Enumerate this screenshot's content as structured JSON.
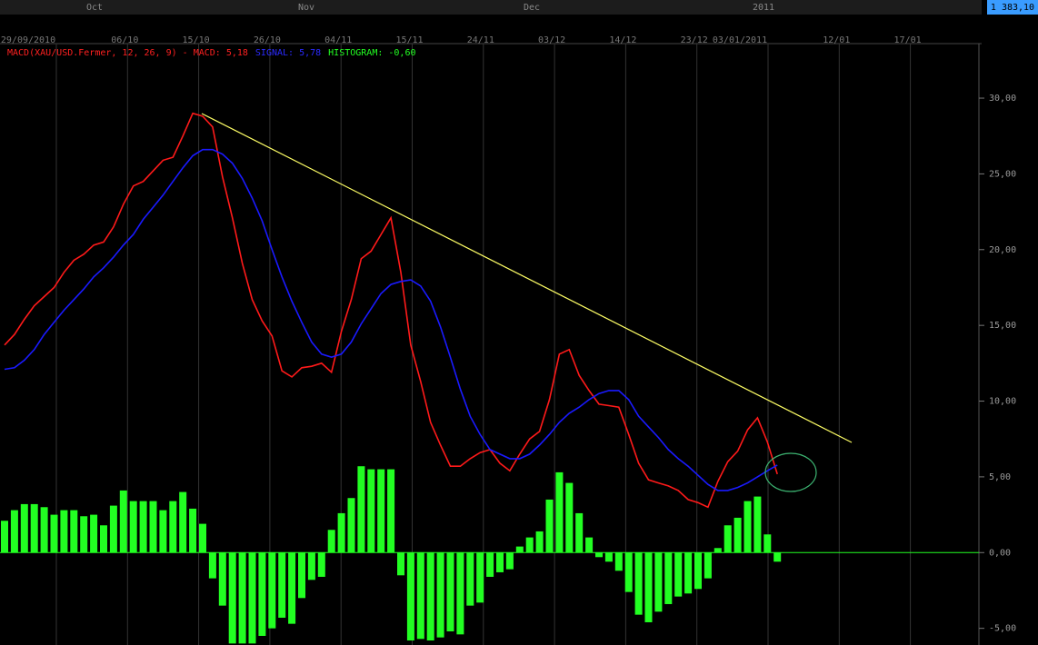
{
  "chart_data": {
    "type": "macd",
    "price_label": "1 383,10",
    "month_labels": [
      "Oct",
      "Nov",
      "Dec",
      "2011"
    ],
    "date_labels": [
      "29/09/2010",
      "06/10",
      "15/10",
      "26/10",
      "04/11",
      "15/11",
      "24/11",
      "03/12",
      "14/12",
      "23/12",
      "03/01/2011",
      "12/01",
      "17/01"
    ],
    "legend": [
      {
        "text": "MACD(XAU/USD.Fermer, 12, 26, 9) - MACD: 5,18",
        "color": "#ff2020"
      },
      {
        "text": "SIGNAL: 5,78",
        "color": "#2a2aff"
      },
      {
        "text": "HISTOGRAM: -0,60",
        "color": "#22ff22"
      }
    ],
    "categories": [
      null,
      null,
      null,
      null,
      null,
      null,
      null,
      null,
      null,
      null,
      null,
      null,
      null,
      null,
      null,
      null,
      null,
      null,
      null,
      null,
      null,
      null,
      null,
      null,
      null,
      null,
      null,
      null,
      null,
      null,
      null,
      null,
      null,
      null,
      null,
      null,
      null,
      null,
      null,
      null,
      null,
      null,
      null,
      null,
      null,
      null,
      null,
      null,
      null,
      null,
      null,
      null,
      null,
      null,
      null,
      null,
      null,
      null,
      null,
      null,
      null,
      null,
      null,
      null,
      null,
      null,
      null,
      null,
      null,
      null,
      null,
      null,
      null,
      null,
      null,
      null,
      null,
      null,
      null
    ],
    "series": [
      {
        "name": "MACD",
        "kind": "line",
        "color": "#ff1a1a",
        "values": [
          13.7,
          14.4,
          15.4,
          16.3,
          16.9,
          17.5,
          18.5,
          19.3,
          19.7,
          20.3,
          20.5,
          21.5,
          23.0,
          24.2,
          24.5,
          25.2,
          25.9,
          26.1,
          27.5,
          29.0,
          28.8,
          28.1,
          24.8,
          22.1,
          19.1,
          16.7,
          15.3,
          14.3,
          12.0,
          11.6,
          12.2,
          12.3,
          12.5,
          11.9,
          14.6,
          16.7,
          19.4,
          19.9,
          21.0,
          22.1,
          18.5,
          13.7,
          11.3,
          8.6,
          7.1,
          5.7,
          5.7,
          6.2,
          6.6,
          6.8,
          5.9,
          5.4,
          6.5,
          7.5,
          8.0,
          10.1,
          13.1,
          13.4,
          11.7,
          10.7,
          9.8,
          9.7,
          9.6,
          7.8,
          5.9,
          4.8,
          4.6,
          4.4,
          4.1,
          3.5,
          3.3,
          3.0,
          4.7,
          6.0,
          6.7,
          8.1,
          8.9,
          7.3,
          5.18
        ]
      },
      {
        "name": "SIGNAL",
        "kind": "line",
        "color": "#1a1aff",
        "values": [
          12.1,
          12.2,
          12.7,
          13.4,
          14.4,
          15.2,
          16.0,
          16.7,
          17.4,
          18.2,
          18.8,
          19.5,
          20.3,
          21.0,
          22.0,
          22.8,
          23.6,
          24.5,
          25.4,
          26.2,
          26.6,
          26.6,
          26.3,
          25.7,
          24.7,
          23.4,
          21.9,
          20.0,
          18.2,
          16.6,
          15.2,
          13.9,
          13.1,
          12.9,
          13.1,
          13.9,
          15.1,
          16.1,
          17.1,
          17.7,
          17.9,
          18.0,
          17.6,
          16.6,
          14.9,
          12.9,
          10.8,
          9.0,
          7.8,
          6.8,
          6.5,
          6.2,
          6.2,
          6.5,
          7.1,
          7.8,
          8.6,
          9.2,
          9.6,
          10.1,
          10.5,
          10.7,
          10.7,
          10.1,
          9.0,
          8.3,
          7.6,
          6.8,
          6.2,
          5.7,
          5.1,
          4.5,
          4.1,
          4.1,
          4.3,
          4.6,
          5.0,
          5.4,
          5.78
        ]
      },
      {
        "name": "HISTOGRAM",
        "kind": "bar",
        "color": "#22ff22",
        "values": [
          2.1,
          2.8,
          3.2,
          3.2,
          3.0,
          2.5,
          2.8,
          2.8,
          2.4,
          2.5,
          1.8,
          3.1,
          4.1,
          3.4,
          3.4,
          3.4,
          2.8,
          3.4,
          4.0,
          2.9,
          1.9,
          -1.7,
          -3.5,
          -6.0,
          -6.0,
          -6.0,
          -5.5,
          -5.0,
          -4.3,
          -4.7,
          -3.0,
          -1.8,
          -1.6,
          1.5,
          2.6,
          3.6,
          5.7,
          5.5,
          5.5,
          5.5,
          -1.5,
          -5.8,
          -5.7,
          -5.8,
          -5.6,
          -5.2,
          -5.4,
          -3.5,
          -3.3,
          -1.6,
          -1.3,
          -1.1,
          0.4,
          1.0,
          1.4,
          3.5,
          5.3,
          4.6,
          2.6,
          1.0,
          -0.3,
          -0.6,
          -1.2,
          -2.6,
          -4.1,
          -4.6,
          -3.9,
          -3.4,
          -2.9,
          -2.7,
          -2.4,
          -1.7,
          0.3,
          1.8,
          2.3,
          3.4,
          3.7,
          1.2,
          -0.6
        ]
      }
    ],
    "ylim": [
      -6.1,
      33.6
    ],
    "yticks": [
      {
        "value": 30,
        "label": "30,00"
      },
      {
        "value": 25,
        "label": "25,00"
      },
      {
        "value": 20,
        "label": "20,00"
      },
      {
        "value": 15,
        "label": "15,00"
      },
      {
        "value": 10,
        "label": "10,00"
      },
      {
        "value": 5,
        "label": "5,00"
      },
      {
        "value": 0,
        "label": "0,00"
      },
      {
        "value": -5,
        "label": "-5,00"
      }
    ],
    "grid": true
  }
}
